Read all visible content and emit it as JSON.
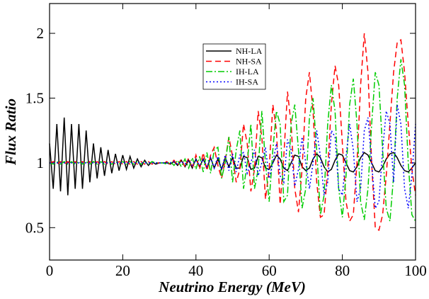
{
  "chart_data": {
    "type": "line",
    "xlabel": "Neutrino Energy  (MeV)",
    "ylabel": "Flux Ratio",
    "xlim": [
      0,
      100
    ],
    "ylim": [
      0.25,
      2.23
    ],
    "xticks": [
      0,
      20,
      40,
      60,
      80,
      100
    ],
    "yticks": [
      0.5,
      1,
      1.5,
      2
    ],
    "legend": "upper center",
    "x": [
      0,
      1,
      2,
      3,
      4,
      5,
      6,
      7,
      8,
      9,
      10,
      11,
      12,
      13,
      14,
      15,
      16,
      17,
      18,
      19,
      20,
      21,
      22,
      23,
      24,
      25,
      26,
      27,
      28,
      29,
      30,
      31,
      32,
      33,
      34,
      35,
      36,
      37,
      38,
      39,
      40,
      41,
      42,
      43,
      44,
      45,
      46,
      47,
      48,
      49,
      50,
      51,
      52,
      53,
      54,
      55,
      56,
      57,
      58,
      59,
      60,
      61,
      62,
      63,
      64,
      65,
      66,
      67,
      68,
      69,
      70,
      71,
      72,
      73,
      74,
      75,
      76,
      77,
      78,
      79,
      80,
      81,
      82,
      83,
      84,
      85,
      86,
      87,
      88,
      89,
      90,
      91,
      92,
      93,
      94,
      95,
      96,
      97,
      98,
      99,
      100
    ],
    "series": [
      {
        "name": "NH-LA",
        "color": "#000000",
        "dash": "none",
        "values": [
          1.15,
          0.8,
          1.3,
          0.78,
          1.35,
          0.75,
          1.3,
          0.8,
          1.3,
          0.8,
          1.25,
          0.85,
          1.15,
          0.88,
          1.12,
          0.9,
          1.1,
          0.92,
          1.07,
          0.94,
          1.06,
          0.95,
          1.05,
          0.96,
          1.03,
          0.97,
          1.02,
          0.98,
          1.01,
          0.99,
          1.0,
          1.0,
          1.0,
          0.99,
          1.01,
          0.98,
          1.02,
          0.97,
          1.02,
          0.96,
          1.03,
          0.97,
          1.03,
          0.96,
          1.04,
          0.96,
          1.03,
          0.95,
          1.04,
          0.97,
          1.04,
          0.96,
          0.96,
          1.05,
          1.04,
          0.95,
          0.96,
          1.05,
          1.04,
          0.96,
          0.95,
          1.0,
          1.06,
          1.03,
          0.96,
          0.94,
          1.0,
          1.06,
          1.05,
          0.97,
          0.94,
          0.96,
          1.03,
          1.07,
          1.04,
          0.97,
          0.93,
          0.95,
          1.02,
          1.07,
          1.06,
          1.0,
          0.94,
          0.93,
          0.97,
          1.04,
          1.08,
          1.06,
          1.0,
          0.94,
          0.93,
          0.97,
          1.03,
          1.07,
          1.08,
          1.04,
          0.98,
          0.94,
          0.93,
          0.96,
          1.0
        ]
      },
      {
        "name": "NH-SA",
        "color": "#ff0000",
        "dash": "8 5",
        "values": [
          1.0,
          1.01,
          0.99,
          1.01,
          0.99,
          1.01,
          0.99,
          1.01,
          0.99,
          1.01,
          0.99,
          1.01,
          0.99,
          1.01,
          0.99,
          1.01,
          0.99,
          1.01,
          0.99,
          1.01,
          0.99,
          1.01,
          0.99,
          1.01,
          0.99,
          1.01,
          0.99,
          1.01,
          0.99,
          1.0,
          1.0,
          1.0,
          1.01,
          0.99,
          1.02,
          0.98,
          1.03,
          0.97,
          1.04,
          0.96,
          1.06,
          0.95,
          1.08,
          0.94,
          1.06,
          1.12,
          0.98,
          0.88,
          1.02,
          1.2,
          1.05,
          0.85,
          0.95,
          1.3,
          1.15,
          0.78,
          0.95,
          1.4,
          1.2,
          0.72,
          0.95,
          1.45,
          1.25,
          0.68,
          1.05,
          1.55,
          1.3,
          0.8,
          0.62,
          0.95,
          1.5,
          1.7,
          1.4,
          0.85,
          0.58,
          0.6,
          0.95,
          1.45,
          1.75,
          1.6,
          1.15,
          0.7,
          0.55,
          0.6,
          1.0,
          1.6,
          2.0,
          1.7,
          1.0,
          0.5,
          0.48,
          0.6,
          0.9,
          1.3,
          1.7,
          1.93,
          1.95,
          1.7,
          1.3,
          0.95,
          0.75
        ]
      },
      {
        "name": "IH-LA",
        "color": "#00cc00",
        "dash": "9 3 2 3",
        "values": [
          1.0,
          0.99,
          1.01,
          0.99,
          1.01,
          0.99,
          1.01,
          0.99,
          1.01,
          0.99,
          1.01,
          0.99,
          1.01,
          0.99,
          1.01,
          0.99,
          1.01,
          0.99,
          1.01,
          0.99,
          1.01,
          0.99,
          1.01,
          0.99,
          1.01,
          0.99,
          1.01,
          0.99,
          1.01,
          1.0,
          1.0,
          1.0,
          0.99,
          1.01,
          0.98,
          1.02,
          0.97,
          1.03,
          0.96,
          1.04,
          0.95,
          1.05,
          0.93,
          1.08,
          0.92,
          1.1,
          1.12,
          0.88,
          1.0,
          1.2,
          0.85,
          1.1,
          1.25,
          0.8,
          1.0,
          1.3,
          0.8,
          0.95,
          1.4,
          1.0,
          0.7,
          1.1,
          1.4,
          1.3,
          0.7,
          0.75,
          1.3,
          1.45,
          1.1,
          0.65,
          0.8,
          1.35,
          1.5,
          1.1,
          0.6,
          0.75,
          1.3,
          1.6,
          1.4,
          0.8,
          0.58,
          0.9,
          1.45,
          1.65,
          1.3,
          0.7,
          0.56,
          0.8,
          1.3,
          1.7,
          1.6,
          1.1,
          0.65,
          0.55,
          0.9,
          1.5,
          1.8,
          1.6,
          1.0,
          0.6,
          0.55
        ]
      },
      {
        "name": "IH-SA",
        "color": "#0000ff",
        "dash": "2 3",
        "values": [
          1.0,
          1.0,
          1.0,
          1.0,
          1.0,
          1.0,
          1.0,
          1.0,
          1.0,
          1.0,
          1.0,
          1.0,
          1.0,
          1.0,
          1.0,
          1.0,
          1.0,
          1.0,
          1.0,
          1.0,
          1.0,
          1.0,
          1.0,
          1.0,
          1.0,
          1.0,
          1.0,
          1.0,
          1.0,
          1.0,
          1.0,
          1.0,
          1.0,
          1.0,
          1.01,
          0.99,
          1.01,
          0.99,
          1.02,
          0.98,
          1.02,
          0.98,
          1.03,
          0.97,
          1.04,
          0.96,
          1.05,
          0.95,
          1.06,
          0.94,
          1.07,
          0.93,
          1.06,
          1.08,
          0.92,
          1.0,
          1.1,
          0.9,
          1.0,
          1.12,
          0.88,
          1.0,
          1.15,
          0.9,
          0.85,
          1.18,
          1.1,
          0.82,
          0.95,
          1.2,
          1.0,
          0.8,
          1.0,
          1.25,
          1.05,
          0.75,
          0.85,
          1.25,
          1.2,
          0.8,
          0.75,
          1.05,
          1.3,
          1.1,
          0.7,
          0.8,
          1.25,
          1.35,
          1.0,
          0.65,
          0.7,
          1.1,
          1.4,
          1.3,
          0.85,
          1.45,
          1.3,
          0.8,
          0.65,
          0.9,
          1.3
        ]
      }
    ]
  }
}
